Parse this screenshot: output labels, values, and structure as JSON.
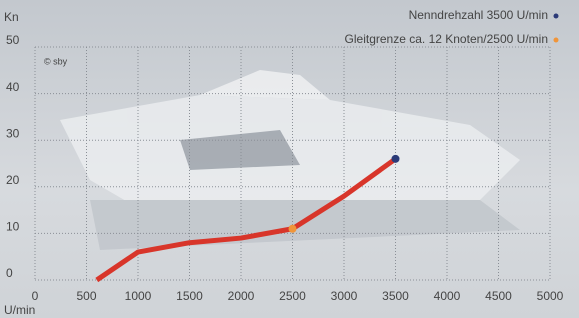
{
  "chart_data": {
    "type": "line",
    "y_label": "Kn",
    "x_label": "U/min",
    "credit": "© sby",
    "x": [
      600,
      1000,
      1500,
      2000,
      2500,
      3000,
      3500
    ],
    "series": [
      {
        "color": "#d8352a",
        "values": [
          0,
          6,
          8,
          9,
          11,
          18,
          26
        ]
      }
    ],
    "highlights": [
      {
        "label": "Nenndrehzahl 3500 U/min",
        "color": "#2b3a78",
        "x": 3500,
        "y": 26
      },
      {
        "label": "Gleitgrenze ca. 12 Knoten/2500 U/min",
        "color": "#f0953a",
        "x": 2500,
        "y": 11
      }
    ],
    "xlim": [
      0,
      5000
    ],
    "xticks": [
      0,
      500,
      1000,
      1500,
      2000,
      2500,
      3000,
      3500,
      4000,
      4500,
      5000
    ],
    "ylim": [
      0,
      50
    ],
    "yticks": [
      0,
      10,
      20,
      30,
      40,
      50
    ],
    "grid": true
  }
}
